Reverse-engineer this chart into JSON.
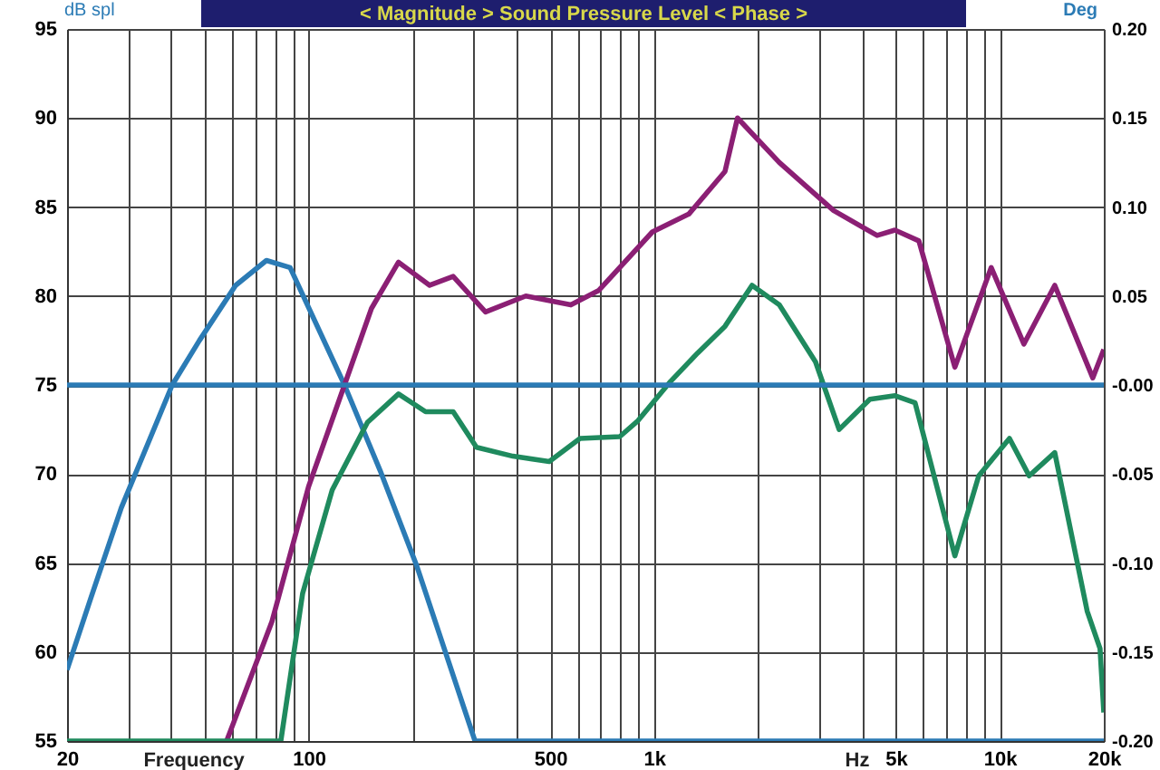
{
  "chart_data": {
    "type": "line",
    "title": "< Magnitude >   Sound Pressure Level   < Phase >",
    "ylabel": "dB spl",
    "y2label": "Deg",
    "xlabel": "Frequency",
    "annotations": [
      "Hz"
    ],
    "log": "x",
    "xlim": [
      20,
      20000
    ],
    "xticks": [
      20,
      {
        "value": 30,
        "label": null
      },
      {
        "value": 40,
        "label": null
      },
      {
        "value": 50,
        "label": null
      },
      {
        "value": 60,
        "label": null
      },
      {
        "value": 70,
        "label": null
      },
      {
        "value": 80,
        "label": null
      },
      {
        "value": 90,
        "label": null
      },
      100,
      {
        "value": 200,
        "label": null
      },
      {
        "value": 300,
        "label": null
      },
      {
        "value": 400,
        "label": null
      },
      500,
      {
        "value": 600,
        "label": null
      },
      {
        "value": 700,
        "label": null
      },
      {
        "value": 800,
        "label": null
      },
      {
        "value": 900,
        "label": null
      },
      {
        "value": 1000,
        "label": "1k"
      },
      {
        "value": 2000,
        "label": null
      },
      {
        "value": 3000,
        "label": null
      },
      {
        "value": 4000,
        "label": null
      },
      {
        "value": 5000,
        "label": "5k"
      },
      {
        "value": 6000,
        "label": null
      },
      {
        "value": 7000,
        "label": null
      },
      {
        "value": 8000,
        "label": null
      },
      {
        "value": 9000,
        "label": null
      },
      {
        "value": 10000,
        "label": "10k"
      },
      {
        "value": 20000,
        "label": "20k"
      }
    ],
    "ylim": [
      55,
      95
    ],
    "yticks": [
      55,
      60,
      65,
      70,
      75,
      80,
      85,
      90,
      95
    ],
    "y2lim": [
      -0.2,
      0.2
    ],
    "y2ticks": [
      {
        "value": -0.2,
        "label": "-0.20"
      },
      {
        "value": -0.15,
        "label": "-0.15"
      },
      {
        "value": -0.1,
        "label": "-0.10"
      },
      {
        "value": -0.05,
        "label": "-0.05"
      },
      {
        "value": 0,
        "label": "-0.00"
      },
      {
        "value": 0.05,
        "label": "0.05"
      },
      {
        "value": 0.1,
        "label": "0.10"
      },
      {
        "value": 0.15,
        "label": "0.15"
      },
      {
        "value": 0.2,
        "label": "0.20"
      }
    ],
    "grid": true,
    "line_style": "solid",
    "series": [
      {
        "color": "#2b7bb5",
        "x": [
          20,
          23.4,
          28.7,
          40.3,
          48.3,
          61.5,
          75.5,
          88.4,
          127,
          161,
          205,
          303,
          20000
        ],
        "values": [
          59.0,
          63.0,
          68.1,
          75.0,
          77.5,
          80.6,
          82.0,
          81.6,
          75.0,
          70.2,
          64.9,
          55.0,
          55.0
        ]
      },
      {
        "color": "#8b1f74",
        "x": [
          57.9,
          78.3,
          100,
          127,
          152,
          182,
          224,
          262,
          325,
          425,
          574,
          690,
          988,
          1259,
          1603,
          1742,
          2302,
          3304,
          4415,
          4973,
          5831,
          7414,
          9446,
          11744,
          14424,
          18580,
          20000
        ],
        "values": [
          55.0,
          61.7,
          69.3,
          75.0,
          79.3,
          81.9,
          80.6,
          81.1,
          79.1,
          80.0,
          79.5,
          80.3,
          83.6,
          84.6,
          87.0,
          90.0,
          87.5,
          84.8,
          83.4,
          83.7,
          83.1,
          76.0,
          81.6,
          77.3,
          80.6,
          75.4,
          77.0
        ]
      },
      {
        "color": "#1f8a5e",
        "x": [
          20,
          83.1,
          96.1,
          117,
          148,
          182,
          218,
          262,
          306,
          390,
          497,
          610,
          795,
          898,
          1115,
          1336,
          1603,
          1919,
          2302,
          2930,
          3429,
          4208,
          4979,
          5687,
          7414,
          8692,
          10665,
          12160,
          14424,
          17900,
          19500,
          20000
        ],
        "values": [
          55.0,
          55.0,
          63.3,
          69.1,
          72.9,
          74.5,
          73.5,
          73.5,
          71.5,
          71.0,
          70.7,
          72.0,
          72.1,
          73.0,
          75.2,
          76.8,
          78.3,
          80.6,
          79.5,
          76.3,
          72.5,
          74.2,
          74.4,
          74.0,
          65.4,
          69.9,
          72.0,
          69.9,
          71.2,
          62.3,
          60.2,
          56.6
        ]
      },
      {
        "color": "#2b7bb5",
        "axis": "y2",
        "x": [
          20,
          20000
        ],
        "values": [
          0,
          0
        ]
      }
    ]
  }
}
